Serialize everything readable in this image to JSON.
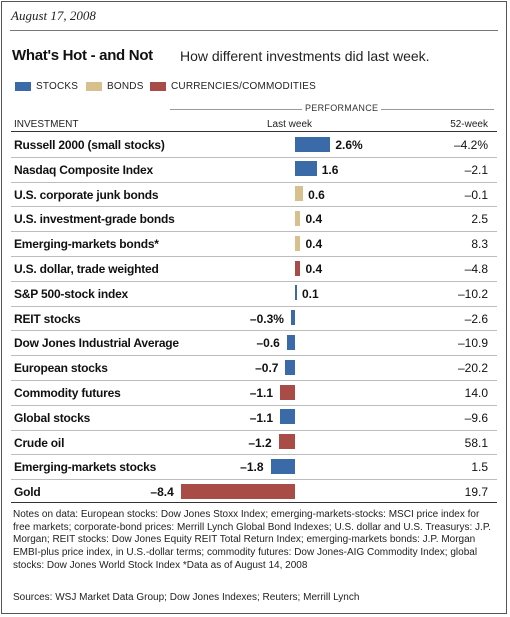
{
  "date": "August 17, 2008",
  "title": "What's Hot - and Not",
  "subtitle": "How different investments did last week.",
  "legend": [
    {
      "label": "STOCKS",
      "color": "#3a6aa8"
    },
    {
      "label": "BONDS",
      "color": "#d8c08e"
    },
    {
      "label": "CURRENCIES/COMMODITIES",
      "color": "#a94c48"
    }
  ],
  "headers": {
    "performance": "PERFORMANCE",
    "investment": "INVESTMENT",
    "last_week": "Last week",
    "week52": "52-week"
  },
  "colors": {
    "stocks": "#3a6aa8",
    "bonds": "#d8c08e",
    "commodities": "#a94c48"
  },
  "notes": "Notes on data: European stocks: Dow Jones Stoxx Index; emerging-markets-stocks: MSCI price index for free markets; corporate-bond prices: Merrill Lynch Global Bond Indexes; U.S. dollar and U.S. Treasurys: J.P. Morgan; REIT stocks: Dow Jones Equity REIT Total Return Index; emerging-markets bonds: J.P. Morgan EMBI-plus price index, in U.S.-dollar terms; commodity futures: Dow Jones-AIG Commodity Index; global stocks: Dow Jones World Stock Index   *Data as of August 14, 2008",
  "sources": "Sources: WSJ Market Data Group; Dow Jones Indexes; Reuters; Merrill Lynch",
  "chart_data": {
    "type": "bar",
    "orientation": "horizontal",
    "categories": [
      "Russell 2000 (small stocks)",
      "Nasdaq Composite Index",
      "U.S. corporate junk bonds",
      "U.S. investment-grade bonds",
      "Emerging-markets bonds*",
      "U.S. dollar, trade weighted",
      "S&P 500-stock index",
      "REIT stocks",
      "Dow Jones Industrial Average",
      "European stocks",
      "Commodity futures",
      "Global stocks",
      "Crude oil",
      "Emerging-markets stocks",
      "Gold"
    ],
    "values": [
      2.6,
      1.6,
      0.6,
      0.4,
      0.4,
      0.4,
      0.1,
      -0.3,
      -0.6,
      -0.7,
      -1.1,
      -1.1,
      -1.2,
      -1.8,
      -8.4
    ],
    "value_labels": [
      "2.6%",
      "1.6",
      "0.6",
      "0.4",
      "0.4",
      "0.4",
      "0.1",
      "–0.3%",
      "–0.6",
      "–0.7",
      "–1.1",
      "–1.1",
      "–1.2",
      "–1.8",
      "–8.4"
    ],
    "week52_labels": [
      "–4.2%",
      "–2.1",
      "–0.1",
      "2.5",
      "8.3",
      "–4.8",
      "–10.2",
      "–2.6",
      "–10.9",
      "–20.2",
      "14.0",
      "–9.6",
      "58.1",
      "1.5",
      "19.7"
    ],
    "week52": [
      -4.2,
      -2.1,
      -0.1,
      2.5,
      8.3,
      -4.8,
      -10.2,
      -2.6,
      -10.9,
      -20.2,
      14.0,
      -9.6,
      58.1,
      1.5,
      19.7
    ],
    "groups": [
      "stocks",
      "stocks",
      "bonds",
      "bonds",
      "bonds",
      "commodities",
      "stocks",
      "stocks",
      "stocks",
      "stocks",
      "commodities",
      "stocks",
      "commodities",
      "stocks",
      "commodities"
    ]
  }
}
